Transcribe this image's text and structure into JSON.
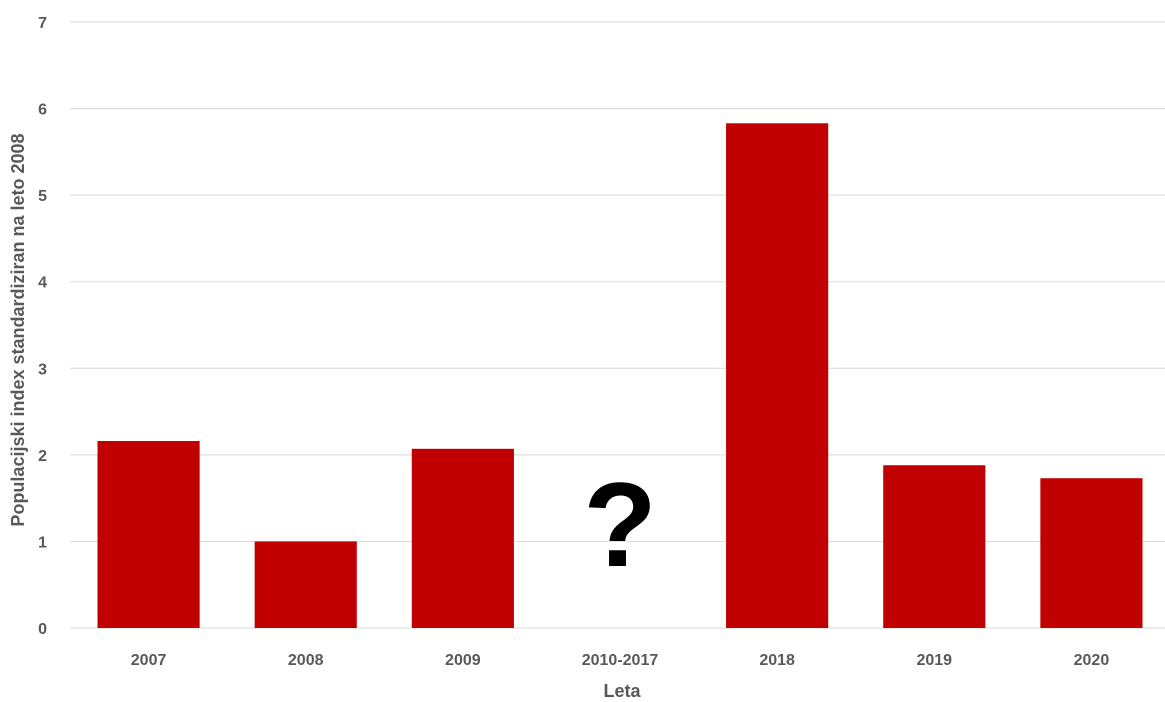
{
  "chart_data": {
    "type": "bar",
    "categories": [
      "2007",
      "2008",
      "2009",
      "2010-2017",
      "2018",
      "2019",
      "2020"
    ],
    "values": [
      2.16,
      1.0,
      2.07,
      null,
      5.83,
      1.88,
      1.73
    ],
    "title": "",
    "xlabel": "Leta",
    "ylabel": "Populacijski index standardiziran na leto 2008",
    "ylim": [
      0,
      7
    ],
    "yticks": [
      "0",
      "1",
      "2",
      "3",
      "4",
      "5",
      "6",
      "7"
    ],
    "grid": true,
    "legend": "none",
    "bar_color": "#c00000",
    "gridline_color": "#d9d9d9",
    "annotations": [
      {
        "category": "2010-2017",
        "text": "?"
      }
    ]
  }
}
